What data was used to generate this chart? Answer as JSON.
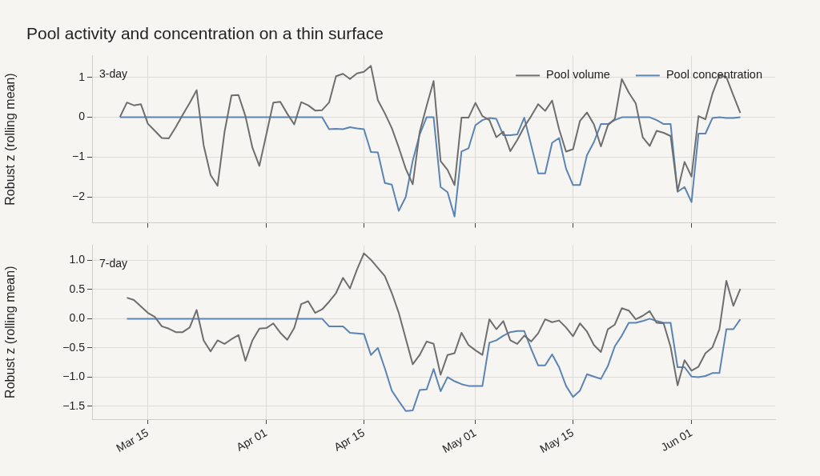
{
  "chart_data": [
    {
      "type": "line",
      "title": "Pool activity and concentration on a thin surface",
      "ylabel": "Robust z (rolling mean)",
      "annotations": [
        "3-day"
      ],
      "x": [
        "--03-11",
        "--03-12",
        "--03-13",
        "--03-14",
        "--03-15",
        "--03-16",
        "--03-17",
        "--03-18",
        "--03-19",
        "--03-20",
        "--03-21",
        "--03-22",
        "--03-23",
        "--03-24",
        "--03-25",
        "--03-26",
        "--03-27",
        "--03-28",
        "--03-29",
        "--03-30",
        "--03-31",
        "--04-01",
        "--04-02",
        "--04-03",
        "--04-04",
        "--04-05",
        "--04-06",
        "--04-07",
        "--04-08",
        "--04-09",
        "--04-10",
        "--04-11",
        "--04-12",
        "--04-13",
        "--04-14",
        "--04-15",
        "--04-16",
        "--04-17",
        "--04-18",
        "--04-19",
        "--04-20",
        "--04-21",
        "--04-22",
        "--04-23",
        "--04-24",
        "--04-25",
        "--04-26",
        "--04-27",
        "--04-28",
        "--04-29",
        "--04-30",
        "--05-01",
        "--05-02",
        "--05-03",
        "--05-04",
        "--05-05",
        "--05-06",
        "--05-07",
        "--05-08",
        "--05-09",
        "--05-10",
        "--05-11",
        "--05-12",
        "--05-13",
        "--05-14",
        "--05-15",
        "--05-16",
        "--05-17",
        "--05-18",
        "--05-19",
        "--05-20",
        "--05-21",
        "--05-22",
        "--05-23",
        "--05-24",
        "--05-25",
        "--05-26",
        "--05-27",
        "--05-28",
        "--05-29",
        "--05-30",
        "--05-31",
        "--06-01",
        "--06-02",
        "--06-03",
        "--06-04",
        "--06-05",
        "--06-06",
        "--06-07",
        "--06-08"
      ],
      "series": [
        {
          "name": "Pool volume",
          "color": "#6e6e6e",
          "values": [
            0.01,
            0.37,
            0.3,
            0.33,
            -0.16,
            -0.34,
            -0.52,
            -0.53,
            -0.25,
            0.06,
            0.36,
            0.68,
            -0.7,
            -1.45,
            -1.72,
            -0.37,
            0.55,
            0.56,
            0.03,
            -0.76,
            -1.22,
            -0.43,
            0.37,
            0.39,
            0.09,
            -0.18,
            0.38,
            0.3,
            0.17,
            0.18,
            0.37,
            1.03,
            1.09,
            0.96,
            1.1,
            1.14,
            1.29,
            0.43,
            0.1,
            -0.27,
            -0.76,
            -1.29,
            -1.68,
            -0.37,
            0.29,
            0.91,
            -1.1,
            -1.32,
            -1.7,
            -0.01,
            -0.01,
            0.36,
            0.03,
            -0.07,
            -0.5,
            -0.36,
            -0.85,
            -0.57,
            -0.24,
            0.03,
            0.33,
            0.16,
            0.42,
            -0.3,
            -0.86,
            -0.8,
            -0.09,
            0.12,
            -0.18,
            -0.73,
            -0.2,
            -0.04,
            0.96,
            0.62,
            0.35,
            -0.5,
            -0.72,
            -0.34,
            -0.39,
            -0.47,
            -1.85,
            -1.12,
            -1.49,
            0.03,
            -0.05,
            0.59,
            1.05,
            1.01,
            0.55,
            0.11
          ]
        },
        {
          "name": "Pool concentration",
          "color": "#5a84b4",
          "values": [
            0,
            0,
            0,
            0,
            0,
            0,
            0,
            0,
            0,
            0,
            0,
            0,
            0,
            0,
            0,
            0,
            0,
            0,
            0,
            0,
            0,
            0,
            0,
            0,
            0,
            0,
            0,
            0,
            0,
            0,
            -0.3,
            -0.29,
            -0.3,
            -0.25,
            -0.28,
            -0.3,
            -0.87,
            -0.88,
            -1.65,
            -1.69,
            -2.35,
            -2.0,
            -1.09,
            -0.43,
            0,
            0,
            -1.75,
            -1.88,
            -2.49,
            -0.86,
            -0.78,
            -0.2,
            -0.07,
            -0.02,
            -0.04,
            -0.45,
            -0.45,
            -0.43,
            -0.01,
            -0.7,
            -1.41,
            -1.41,
            -0.64,
            -0.52,
            -1.29,
            -1.7,
            -1.7,
            -0.95,
            -0.62,
            -0.17,
            -0.17,
            -0.07,
            0,
            0,
            0,
            0,
            0,
            -0.07,
            -0.17,
            -0.17,
            -1.87,
            -1.75,
            -2.13,
            -0.41,
            -0.41,
            -0.02,
            0,
            -0.02,
            -0.02,
            0
          ]
        }
      ],
      "xlim": [
        "--03-07",
        "--06-13"
      ],
      "xticks": [
        {
          "value": "--03-15",
          "label": null
        },
        {
          "value": "--04-01",
          "label": null
        },
        {
          "value": "--04-15",
          "label": null
        },
        {
          "value": "--05-01",
          "label": null
        },
        {
          "value": "--05-15",
          "label": null
        },
        {
          "value": "--06-01",
          "label": null
        }
      ],
      "ylim": [
        -2.65,
        1.55
      ],
      "yticks": [
        {
          "value": -2,
          "label": "−2"
        },
        {
          "value": -1,
          "label": "−1"
        },
        0,
        1
      ],
      "tick_labels": "y",
      "grid": true,
      "legend": "top right",
      "line_style": "solid",
      "marker": "none"
    },
    {
      "type": "line",
      "ylabel": "Robust z (rolling mean)",
      "annotations": [
        "7-day"
      ],
      "x": [
        "--03-12",
        "--03-13",
        "--03-14",
        "--03-15",
        "--03-16",
        "--03-17",
        "--03-18",
        "--03-19",
        "--03-20",
        "--03-21",
        "--03-22",
        "--03-23",
        "--03-24",
        "--03-25",
        "--03-26",
        "--03-27",
        "--03-28",
        "--03-29",
        "--03-30",
        "--03-31",
        "--04-01",
        "--04-02",
        "--04-03",
        "--04-04",
        "--04-05",
        "--04-06",
        "--04-07",
        "--04-08",
        "--04-09",
        "--04-10",
        "--04-11",
        "--04-12",
        "--04-13",
        "--04-14",
        "--04-15",
        "--04-16",
        "--04-17",
        "--04-18",
        "--04-19",
        "--04-20",
        "--04-21",
        "--04-22",
        "--04-23",
        "--04-24",
        "--04-25",
        "--04-26",
        "--04-27",
        "--04-28",
        "--04-29",
        "--04-30",
        "--05-01",
        "--05-02",
        "--05-03",
        "--05-04",
        "--05-05",
        "--05-06",
        "--05-07",
        "--05-08",
        "--05-09",
        "--05-10",
        "--05-11",
        "--05-12",
        "--05-13",
        "--05-14",
        "--05-15",
        "--05-16",
        "--05-17",
        "--05-18",
        "--05-19",
        "--05-20",
        "--05-21",
        "--05-22",
        "--05-23",
        "--05-24",
        "--05-25",
        "--05-26",
        "--05-27",
        "--05-28",
        "--05-29",
        "--05-30",
        "--05-31",
        "--06-01",
        "--06-02",
        "--06-03",
        "--06-04",
        "--06-05",
        "--06-06",
        "--06-07",
        "--06-08"
      ],
      "series": [
        {
          "color": "#6e6e6e",
          "values": [
            0.36,
            0.32,
            0.21,
            0.1,
            0.03,
            -0.13,
            -0.17,
            -0.23,
            -0.23,
            -0.15,
            0.15,
            -0.37,
            -0.56,
            -0.37,
            -0.43,
            -0.35,
            -0.28,
            -0.72,
            -0.37,
            -0.17,
            -0.16,
            -0.08,
            -0.24,
            -0.36,
            -0.16,
            0.25,
            0.3,
            0.1,
            0.16,
            0.29,
            0.44,
            0.7,
            0.52,
            0.84,
            1.12,
            1.01,
            0.87,
            0.73,
            0.44,
            0.1,
            -0.34,
            -0.78,
            -0.62,
            -0.39,
            -0.43,
            -0.96,
            -0.62,
            -0.59,
            -0.24,
            -0.45,
            -0.54,
            -0.62,
            -0.01,
            -0.18,
            -0.04,
            -0.37,
            -0.43,
            -0.29,
            -0.39,
            -0.25,
            -0.01,
            -0.06,
            -0.03,
            -0.15,
            -0.3,
            -0.08,
            -0.22,
            -0.45,
            -0.57,
            -0.18,
            -0.1,
            0.18,
            0.14,
            -0.01,
            0.05,
            0.13,
            -0.07,
            -0.08,
            -0.48,
            -1.14,
            -0.71,
            -0.89,
            -0.82,
            -0.59,
            -0.49,
            -0.18,
            0.65,
            0.22,
            0.51
          ]
        },
        {
          "color": "#5a84b4",
          "values": [
            0,
            0,
            0,
            0,
            0,
            0,
            0,
            0,
            0,
            0,
            0,
            0,
            0,
            0,
            0,
            0,
            0,
            0,
            0,
            0,
            0,
            0,
            0,
            0,
            0,
            0,
            0,
            0,
            0,
            -0.13,
            -0.13,
            -0.13,
            -0.24,
            -0.25,
            -0.26,
            -0.62,
            -0.5,
            -0.85,
            -1.23,
            -1.41,
            -1.58,
            -1.57,
            -1.22,
            -1.21,
            -0.86,
            -1.24,
            -1.0,
            -1.07,
            -1.12,
            -1.15,
            -1.15,
            -1.15,
            -0.41,
            -0.37,
            -0.29,
            -0.23,
            -0.21,
            -0.21,
            -0.52,
            -0.8,
            -0.8,
            -0.61,
            -0.83,
            -1.15,
            -1.34,
            -1.23,
            -0.95,
            -0.99,
            -1.03,
            -0.81,
            -0.47,
            -0.29,
            -0.07,
            -0.07,
            -0.04,
            0,
            -0.04,
            -0.07,
            -0.07,
            -0.83,
            -0.83,
            -0.99,
            -1.0,
            -0.98,
            -0.93,
            -0.93,
            -0.18,
            -0.18,
            -0.01
          ]
        }
      ],
      "xlim": [
        "--03-07",
        "--06-13"
      ],
      "xticks": [
        {
          "value": "--03-15",
          "label": "Mar 15"
        },
        {
          "value": "--04-01",
          "label": "Apr 01"
        },
        {
          "value": "--04-15",
          "label": "Apr 15"
        },
        {
          "value": "--05-01",
          "label": "May 01"
        },
        {
          "value": "--05-15",
          "label": "May 15"
        },
        {
          "value": "--06-01",
          "label": "Jun 01"
        }
      ],
      "ylim": [
        -1.72,
        1.26
      ],
      "yticks": [
        {
          "value": -1.5,
          "label": "−1.5"
        },
        {
          "value": -1,
          "label": "−1.0"
        },
        {
          "value": -0.5,
          "label": "−0.5"
        },
        {
          "value": 0,
          "label": "0.0"
        },
        {
          "value": 0.5,
          "label": "0.5"
        },
        {
          "value": 1,
          "label": "1.0"
        }
      ],
      "grid": true,
      "line_style": "solid",
      "marker": "none"
    }
  ]
}
